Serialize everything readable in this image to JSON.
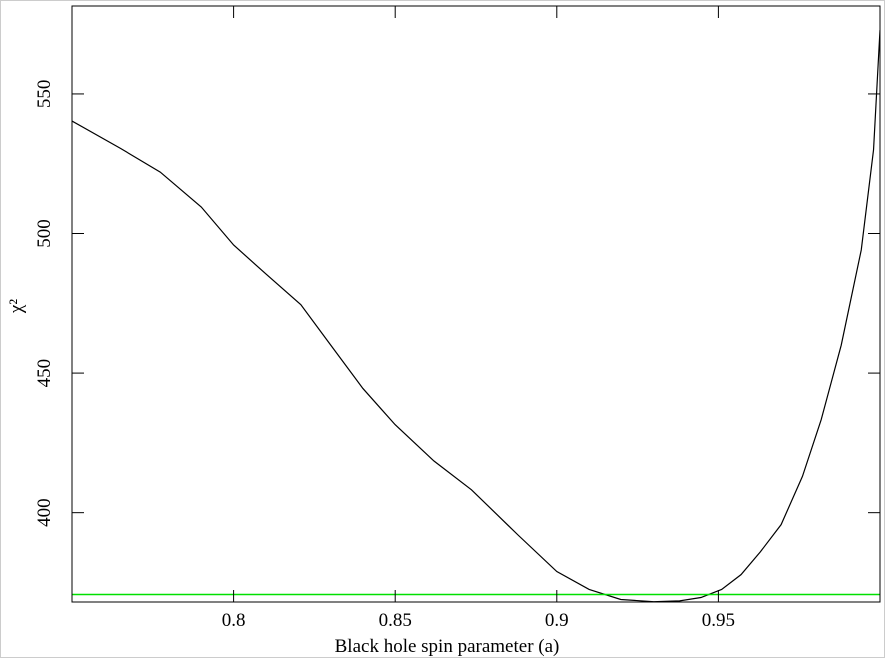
{
  "chart_data": {
    "type": "line",
    "x_label": "Black hole spin parameter (a)",
    "y_label": "χ²",
    "x": [
      0.75,
      0.765,
      0.7773,
      0.79,
      0.8,
      0.81,
      0.8208,
      0.83,
      0.84,
      0.85,
      0.862,
      0.8736,
      0.888,
      0.9,
      0.91,
      0.9198,
      0.93,
      0.938,
      0.9446,
      0.951,
      0.957,
      0.963,
      0.9694,
      0.976,
      0.9818,
      0.988,
      0.9942,
      0.998,
      1.0
    ],
    "series": [
      {
        "name": "chi-square",
        "color": "#000000",
        "values": [
          540.3,
          530.5,
          522,
          509.5,
          495.9,
          485.5,
          474.5,
          460.1,
          444.5,
          431.5,
          418.5,
          408.2,
          392.0,
          378.9,
          372.5,
          368.9,
          368.1,
          368.4,
          369.6,
          372.5,
          377.8,
          386.0,
          395.7,
          413.0,
          433.3,
          460.0,
          494.1,
          530.0,
          572.9
        ]
      }
    ],
    "reference_line": {
      "value": 370.7,
      "color": "#00e000"
    },
    "xlim": [
      0.75,
      1.0
    ],
    "xticks": [
      0.8,
      0.85,
      0.9,
      0.95
    ],
    "ylim": [
      368,
      581.5
    ],
    "yticks": [
      400,
      450,
      500,
      550
    ]
  }
}
